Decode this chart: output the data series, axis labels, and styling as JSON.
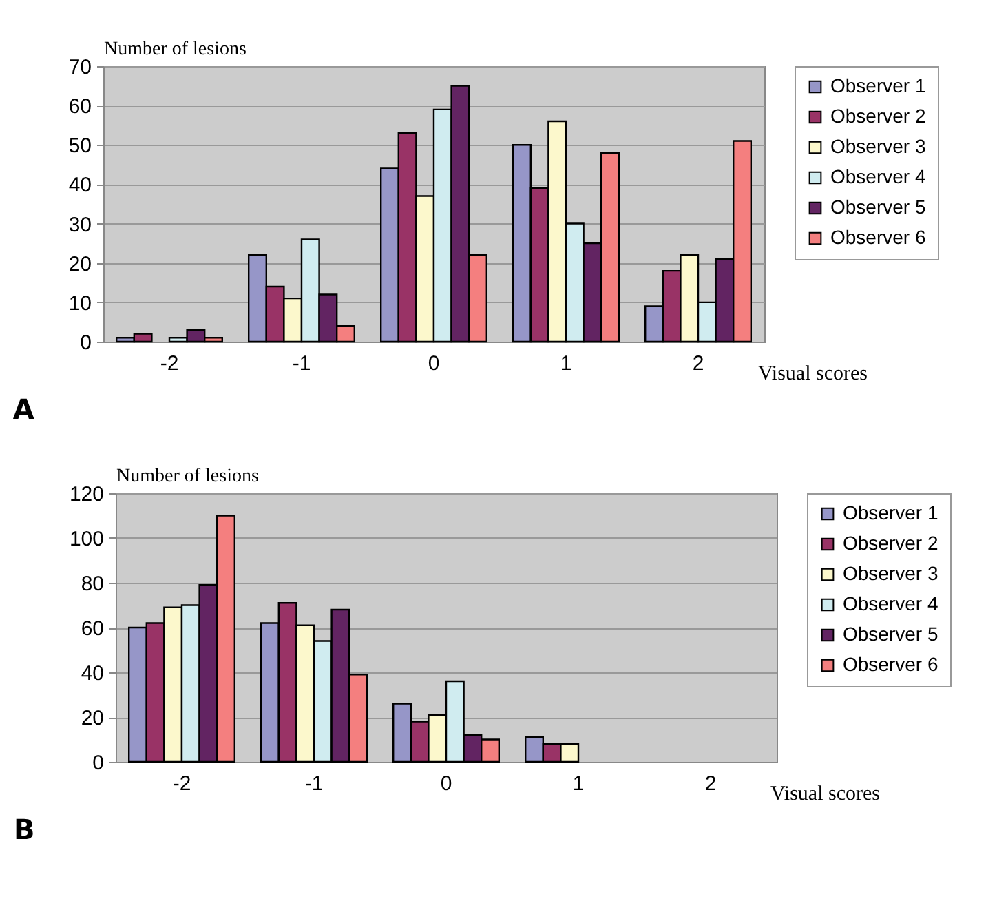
{
  "chart_data": [
    {
      "type": "bar",
      "title": "A",
      "xlabel": "Visual scores",
      "ylabel": "Number of lesions",
      "categories": [
        "-2",
        "-1",
        "0",
        "1",
        "2"
      ],
      "ylim": [
        0,
        70
      ],
      "yticks": [
        0,
        10,
        20,
        30,
        40,
        50,
        60,
        70
      ],
      "grid": "y",
      "legend": "right",
      "series": [
        {
          "name": "Observer 1",
          "color": "#9696c8",
          "values": [
            1,
            22,
            44,
            50,
            9
          ]
        },
        {
          "name": "Observer 2",
          "color": "#993366",
          "values": [
            2,
            14,
            53,
            39,
            18
          ]
        },
        {
          "name": "Observer 3",
          "color": "#fcf8cc",
          "values": [
            null,
            11,
            37,
            56,
            22
          ]
        },
        {
          "name": "Observer 4",
          "color": "#d0ecf0",
          "values": [
            1,
            26,
            59,
            30,
            10
          ]
        },
        {
          "name": "Observer 5",
          "color": "#622462",
          "values": [
            3,
            12,
            65,
            25,
            21
          ]
        },
        {
          "name": "Observer 6",
          "color": "#f47f7f",
          "values": [
            1,
            4,
            22,
            48,
            51
          ]
        }
      ]
    },
    {
      "type": "bar",
      "title": "B",
      "xlabel": "Visual scores",
      "ylabel": "Number of lesions",
      "categories": [
        "-2",
        "-1",
        "0",
        "1",
        "2"
      ],
      "ylim": [
        0,
        120
      ],
      "yticks": [
        0,
        20,
        40,
        60,
        80,
        100,
        120
      ],
      "grid": "y",
      "legend": "right",
      "series": [
        {
          "name": "Observer 1",
          "color": "#9696c8",
          "values": [
            60,
            62,
            26,
            11,
            null
          ]
        },
        {
          "name": "Observer 2",
          "color": "#993366",
          "values": [
            62,
            71,
            18,
            8,
            null
          ]
        },
        {
          "name": "Observer 3",
          "color": "#fcf8cc",
          "values": [
            69,
            61,
            21,
            8,
            null
          ]
        },
        {
          "name": "Observer 4",
          "color": "#d0ecf0",
          "values": [
            70,
            54,
            36,
            null,
            null
          ]
        },
        {
          "name": "Observer 5",
          "color": "#622462",
          "values": [
            79,
            68,
            12,
            null,
            null
          ]
        },
        {
          "name": "Observer 6",
          "color": "#f47f7f",
          "values": [
            110,
            39,
            10,
            null,
            null
          ]
        }
      ]
    }
  ]
}
